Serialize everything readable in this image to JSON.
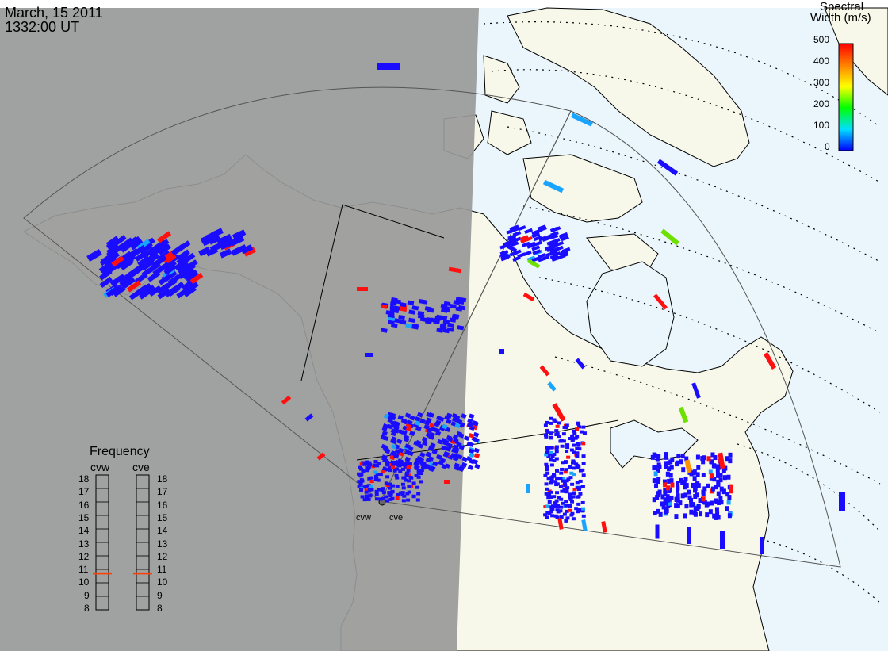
{
  "header": {
    "date": "March, 15 2011",
    "time": "1332:00 UT"
  },
  "colorbar": {
    "title_line1": "Spectral",
    "title_line2": "Width (m/s)",
    "ticks": [
      "500",
      "400",
      "300",
      "200",
      "100",
      "0"
    ],
    "range": [
      0,
      500
    ],
    "colors": [
      "#0000ff",
      "#00e0ff",
      "#00ff00",
      "#ffff00",
      "#ff8000",
      "#ff0000"
    ]
  },
  "frequency_panel": {
    "title": "Frequency",
    "radars": [
      {
        "name": "cvw",
        "selected_mhz": 10.7
      },
      {
        "name": "cve",
        "selected_mhz": 10.7
      }
    ],
    "ticks": [
      "18",
      "17",
      "16",
      "15",
      "14",
      "13",
      "12",
      "11",
      "10",
      "9",
      "8"
    ],
    "marker_color": "#ff4000"
  },
  "radars": [
    {
      "label": "cvw"
    },
    {
      "label": "cve"
    }
  ],
  "map": {
    "night_color": "#999999",
    "ocean_color": "#eaf6fb",
    "land_color": "#f8f8ea",
    "coastline_color": "#000000",
    "fov_color": "#555555",
    "grid_color": "#000000"
  },
  "icons": {
    "radar_site": "radar-site-dot"
  }
}
